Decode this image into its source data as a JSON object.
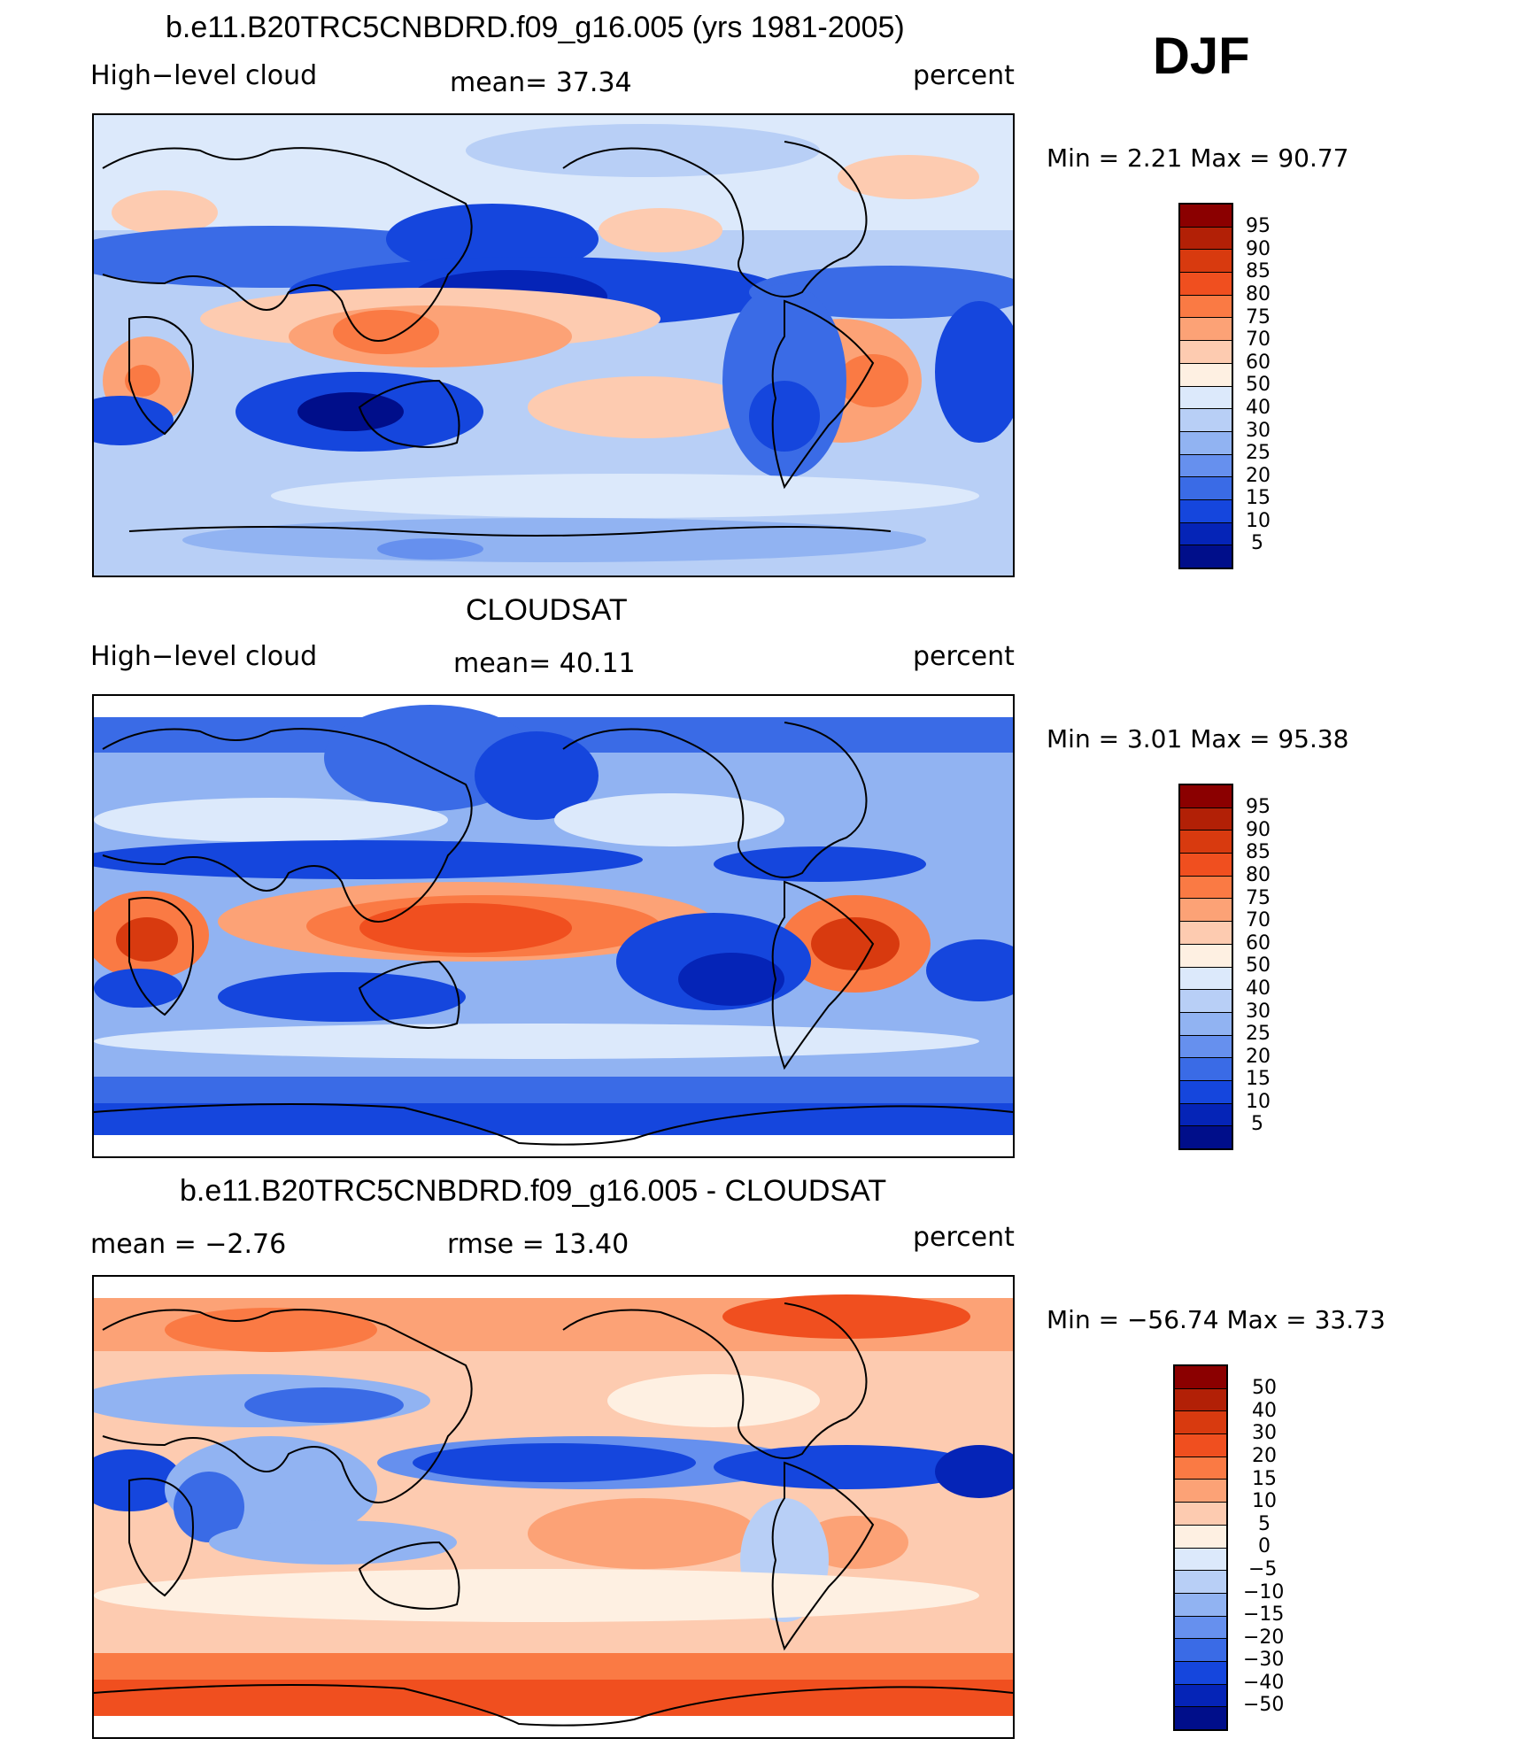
{
  "season": "DJF",
  "panels": [
    {
      "title": "b.e11.B20TRC5CNBDRD.f09_g16.005 (yrs 1981-2005)",
      "left": "High−level cloud",
      "center": "mean=   37.34",
      "right": "percent",
      "minmax": "Min =     2.21  Max =    90.77",
      "levels": [
        "95",
        "90",
        "85",
        "80",
        "75",
        "70",
        "60",
        "50",
        "40",
        "30",
        "25",
        "20",
        "15",
        "10",
        "5"
      ]
    },
    {
      "title": "CLOUDSAT",
      "left": "High−level cloud",
      "center": "mean=   40.11",
      "right": "percent",
      "minmax": "Min =     3.01  Max =    95.38",
      "levels": [
        "95",
        "90",
        "85",
        "80",
        "75",
        "70",
        "60",
        "50",
        "40",
        "30",
        "25",
        "20",
        "15",
        "10",
        "5"
      ]
    },
    {
      "title": "b.e11.B20TRC5CNBDRD.f09_g16.005 - CLOUDSAT",
      "left": "mean =    −2.76",
      "center": "rmse  =    13.40",
      "right": "percent",
      "minmax": "Min = −56.74  Max =    33.73",
      "levels": [
        "50",
        "40",
        "30",
        "20",
        "15",
        "10",
        "5",
        "0",
        "−5",
        "−10",
        "−15",
        "−20",
        "−30",
        "−40",
        "−50"
      ]
    }
  ],
  "palette": [
    "#8b0000",
    "#b22006",
    "#d83a0f",
    "#f04f1f",
    "#fa7a44",
    "#fca276",
    "#fdcbb0",
    "#fef0e2",
    "#dce9fb",
    "#b8cff6",
    "#91b3f2",
    "#6690ee",
    "#3a6be6",
    "#1546dd",
    "#0524b7",
    "#000e8a"
  ]
}
